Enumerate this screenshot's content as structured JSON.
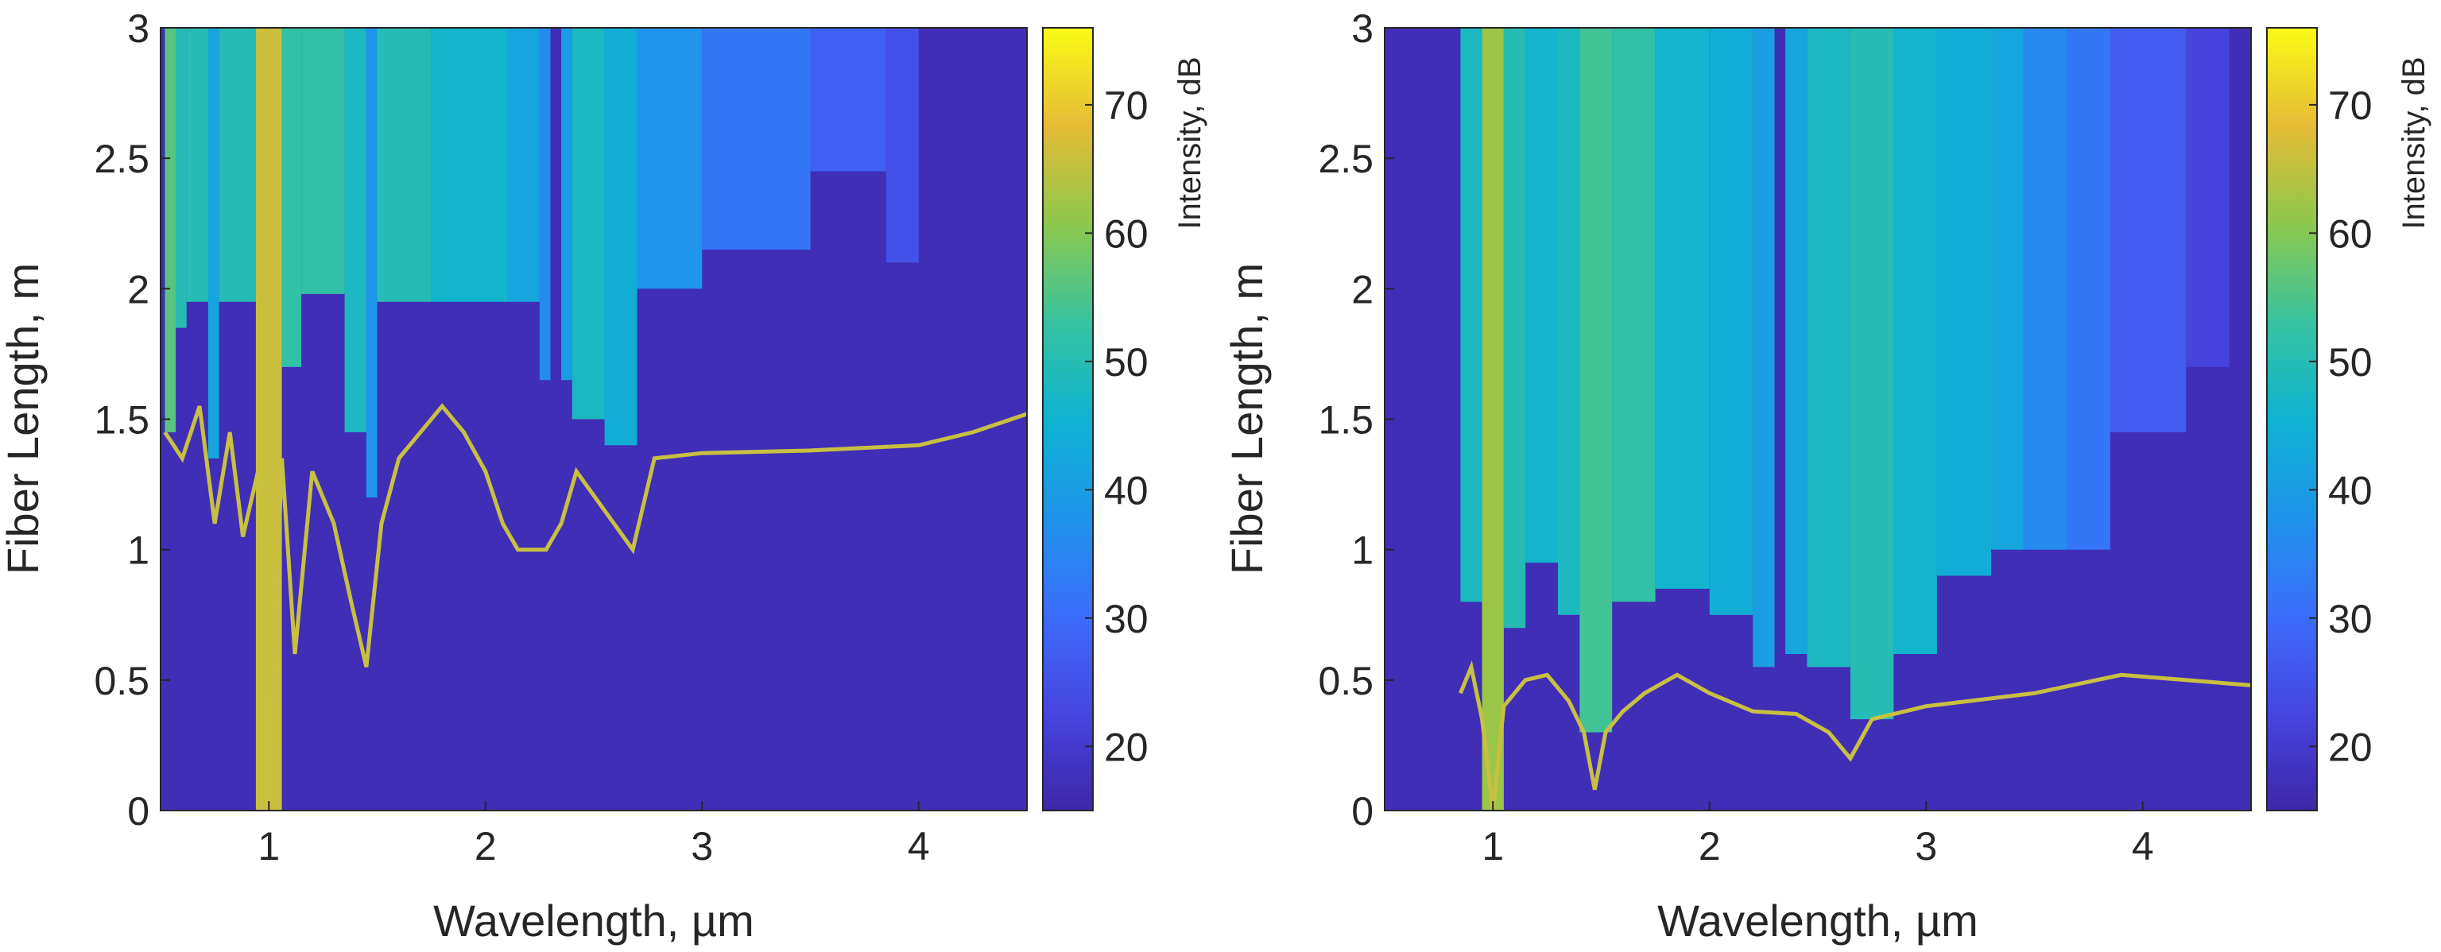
{
  "chart_data": [
    {
      "type": "heatmap",
      "title": "",
      "xlabel": "Wavelength, µm",
      "ylabel": "Fiber Length, m",
      "xlim": [
        0.5,
        4.5
      ],
      "ylim": [
        0,
        3
      ],
      "x_ticks": [
        1,
        2,
        3,
        4
      ],
      "y_ticks": [
        0,
        0.5,
        1,
        1.5,
        2,
        2.5,
        3
      ],
      "colorbar": {
        "label": "Intensity, dB",
        "range": [
          15,
          76
        ],
        "ticks": [
          20,
          30,
          40,
          50,
          60,
          70
        ]
      },
      "background_db": 17,
      "trace_color": "#c8c040",
      "bands": [
        {
          "x0": 0.52,
          "x1": 0.57,
          "y_bottom": 1.45,
          "db": 56
        },
        {
          "x0": 0.57,
          "x1": 0.62,
          "y_bottom": 1.85,
          "db": 50
        },
        {
          "x0": 0.62,
          "x1": 0.72,
          "y_bottom": 1.95,
          "db": 50
        },
        {
          "x0": 0.72,
          "x1": 0.77,
          "y_bottom": 1.35,
          "db": 42
        },
        {
          "x0": 0.77,
          "x1": 0.94,
          "y_bottom": 1.95,
          "db": 50
        },
        {
          "x0": 0.94,
          "x1": 1.06,
          "y_bottom": 0.0,
          "db": 66
        },
        {
          "x0": 1.06,
          "x1": 1.15,
          "y_bottom": 1.7,
          "db": 52
        },
        {
          "x0": 1.15,
          "x1": 1.35,
          "y_bottom": 1.98,
          "db": 52
        },
        {
          "x0": 1.35,
          "x1": 1.45,
          "y_bottom": 1.45,
          "db": 48
        },
        {
          "x0": 1.45,
          "x1": 1.5,
          "y_bottom": 1.2,
          "db": 38
        },
        {
          "x0": 1.5,
          "x1": 1.75,
          "y_bottom": 1.95,
          "db": 50
        },
        {
          "x0": 1.75,
          "x1": 2.1,
          "y_bottom": 1.95,
          "db": 46
        },
        {
          "x0": 2.1,
          "x1": 2.25,
          "y_bottom": 1.95,
          "db": 42
        },
        {
          "x0": 2.25,
          "x1": 2.3,
          "y_bottom": 1.65,
          "db": 36
        },
        {
          "x0": 2.3,
          "x1": 2.35,
          "y_bottom": 0.0,
          "db": 17
        },
        {
          "x0": 2.35,
          "x1": 2.4,
          "y_bottom": 1.65,
          "db": 40
        },
        {
          "x0": 2.4,
          "x1": 2.55,
          "y_bottom": 1.5,
          "db": 48
        },
        {
          "x0": 2.55,
          "x1": 2.7,
          "y_bottom": 1.4,
          "db": 44
        },
        {
          "x0": 2.7,
          "x1": 3.0,
          "y_bottom": 2.0,
          "db": 38
        },
        {
          "x0": 3.0,
          "x1": 3.5,
          "y_bottom": 2.15,
          "db": 32
        },
        {
          "x0": 3.5,
          "x1": 3.85,
          "y_bottom": 2.45,
          "db": 28
        },
        {
          "x0": 3.85,
          "x1": 4.0,
          "y_bottom": 2.1,
          "db": 25
        }
      ],
      "trace": [
        [
          0.52,
          1.45
        ],
        [
          0.6,
          1.35
        ],
        [
          0.68,
          1.55
        ],
        [
          0.75,
          1.1
        ],
        [
          0.82,
          1.45
        ],
        [
          0.88,
          1.05
        ],
        [
          0.95,
          1.3
        ],
        [
          1.0,
          0.0
        ],
        [
          1.06,
          1.35
        ],
        [
          1.12,
          0.6
        ],
        [
          1.2,
          1.3
        ],
        [
          1.3,
          1.1
        ],
        [
          1.38,
          0.8
        ],
        [
          1.45,
          0.55
        ],
        [
          1.52,
          1.1
        ],
        [
          1.6,
          1.35
        ],
        [
          1.7,
          1.45
        ],
        [
          1.8,
          1.55
        ],
        [
          1.9,
          1.45
        ],
        [
          2.0,
          1.3
        ],
        [
          2.08,
          1.1
        ],
        [
          2.15,
          1.0
        ],
        [
          2.28,
          1.0
        ],
        [
          2.35,
          1.1
        ],
        [
          2.42,
          1.3
        ],
        [
          2.55,
          1.15
        ],
        [
          2.68,
          1.0
        ],
        [
          2.78,
          1.35
        ],
        [
          3.0,
          1.37
        ],
        [
          3.5,
          1.38
        ],
        [
          4.0,
          1.4
        ],
        [
          4.25,
          1.45
        ],
        [
          4.5,
          1.52
        ]
      ]
    },
    {
      "type": "heatmap",
      "title": "",
      "xlabel": "Wavelength, µm",
      "ylabel": "Fiber Length, m",
      "xlim": [
        0.5,
        4.5
      ],
      "ylim": [
        0,
        3
      ],
      "x_ticks": [
        1,
        2,
        3,
        4
      ],
      "y_ticks": [
        0,
        0.5,
        1,
        1.5,
        2,
        2.5,
        3
      ],
      "colorbar": {
        "label": "Intensity, dB",
        "range": [
          15,
          76
        ],
        "ticks": [
          20,
          30,
          40,
          50,
          60,
          70
        ]
      },
      "background_db": 17,
      "trace_color": "#c8c040",
      "bands": [
        {
          "x0": 0.85,
          "x1": 0.95,
          "y_bottom": 0.8,
          "db": 48
        },
        {
          "x0": 0.95,
          "x1": 1.05,
          "y_bottom": 0.0,
          "db": 62
        },
        {
          "x0": 1.05,
          "x1": 1.15,
          "y_bottom": 0.7,
          "db": 50
        },
        {
          "x0": 1.15,
          "x1": 1.3,
          "y_bottom": 0.95,
          "db": 46
        },
        {
          "x0": 1.3,
          "x1": 1.4,
          "y_bottom": 0.75,
          "db": 48
        },
        {
          "x0": 1.4,
          "x1": 1.55,
          "y_bottom": 0.3,
          "db": 54
        },
        {
          "x0": 1.55,
          "x1": 1.75,
          "y_bottom": 0.8,
          "db": 52
        },
        {
          "x0": 1.75,
          "x1": 2.0,
          "y_bottom": 0.85,
          "db": 46
        },
        {
          "x0": 2.0,
          "x1": 2.2,
          "y_bottom": 0.75,
          "db": 44
        },
        {
          "x0": 2.2,
          "x1": 2.3,
          "y_bottom": 0.55,
          "db": 40
        },
        {
          "x0": 2.3,
          "x1": 2.35,
          "y_bottom": 0.0,
          "db": 17
        },
        {
          "x0": 2.35,
          "x1": 2.45,
          "y_bottom": 0.6,
          "db": 42
        },
        {
          "x0": 2.45,
          "x1": 2.65,
          "y_bottom": 0.55,
          "db": 48
        },
        {
          "x0": 2.65,
          "x1": 2.85,
          "y_bottom": 0.35,
          "db": 50
        },
        {
          "x0": 2.85,
          "x1": 3.05,
          "y_bottom": 0.6,
          "db": 46
        },
        {
          "x0": 3.05,
          "x1": 3.3,
          "y_bottom": 0.9,
          "db": 44
        },
        {
          "x0": 3.3,
          "x1": 3.45,
          "y_bottom": 1.0,
          "db": 42
        },
        {
          "x0": 3.45,
          "x1": 3.65,
          "y_bottom": 1.0,
          "db": 36
        },
        {
          "x0": 3.65,
          "x1": 3.85,
          "y_bottom": 1.0,
          "db": 32
        },
        {
          "x0": 3.85,
          "x1": 4.2,
          "y_bottom": 1.45,
          "db": 27
        },
        {
          "x0": 4.2,
          "x1": 4.4,
          "y_bottom": 1.7,
          "db": 22
        }
      ],
      "trace": [
        [
          0.85,
          0.45
        ],
        [
          0.9,
          0.55
        ],
        [
          0.95,
          0.35
        ],
        [
          1.0,
          0.0
        ],
        [
          1.05,
          0.4
        ],
        [
          1.15,
          0.5
        ],
        [
          1.25,
          0.52
        ],
        [
          1.35,
          0.42
        ],
        [
          1.42,
          0.3
        ],
        [
          1.47,
          0.08
        ],
        [
          1.52,
          0.3
        ],
        [
          1.6,
          0.38
        ],
        [
          1.7,
          0.45
        ],
        [
          1.85,
          0.52
        ],
        [
          2.0,
          0.45
        ],
        [
          2.2,
          0.38
        ],
        [
          2.4,
          0.37
        ],
        [
          2.55,
          0.3
        ],
        [
          2.65,
          0.2
        ],
        [
          2.75,
          0.35
        ],
        [
          3.0,
          0.4
        ],
        [
          3.5,
          0.45
        ],
        [
          3.9,
          0.52
        ],
        [
          4.2,
          0.5
        ],
        [
          4.5,
          0.48
        ]
      ]
    }
  ]
}
